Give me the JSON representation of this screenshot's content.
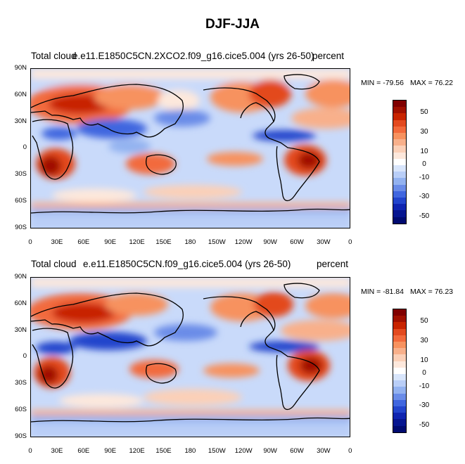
{
  "title": "DJF-JJA",
  "panels": [
    {
      "id": "top",
      "left_title": "Total cloud",
      "center_title": "e.e11.E1850C5CN.2XCO2.f09_g16.cice5.004 (yrs 26-50)",
      "right_title": "percent",
      "min_text": "MIN = -79.56",
      "max_text": "MAX =  76.22"
    },
    {
      "id": "bottom",
      "left_title": "Total cloud",
      "center_title": "e.e11.E1850C5CN.f09_g16.cice5.004 (yrs 26-50)",
      "right_title": "percent",
      "min_text": "MIN = -81.84",
      "max_text": "MAX =  76.23"
    }
  ],
  "lat_labels": [
    "90N",
    "60N",
    "30N",
    "0",
    "30S",
    "60S",
    "90S"
  ],
  "lon_labels": [
    "0",
    "30E",
    "60E",
    "90E",
    "120E",
    "150E",
    "180",
    "150W",
    "120W",
    "90W",
    "60W",
    "30W",
    "0"
  ],
  "colorbar": {
    "labels": [
      "50",
      "30",
      "10",
      "0",
      "-10",
      "-30",
      "-50"
    ],
    "colors": [
      "#800000",
      "#a01000",
      "#c82400",
      "#e34a1f",
      "#f26a3c",
      "#f7925f",
      "#f8b08b",
      "#fbd0b8",
      "#fde8dc",
      "#ffffff",
      "#d8e5fb",
      "#b9cef7",
      "#93b2f0",
      "#6a8ce8",
      "#4066df",
      "#2244cc",
      "#0f24b0",
      "#061590",
      "#000a70"
    ]
  }
}
